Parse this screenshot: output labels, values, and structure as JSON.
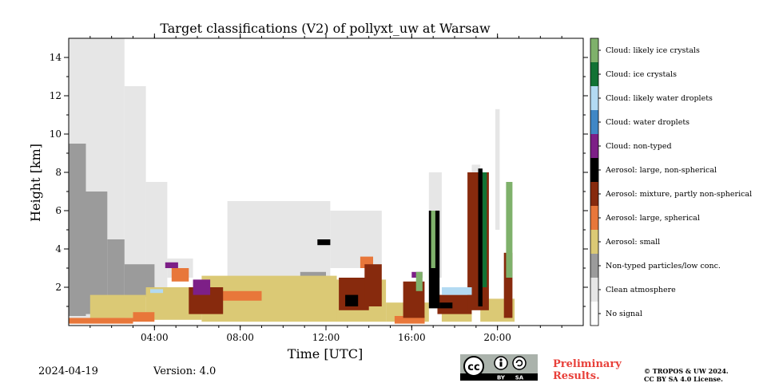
{
  "chart_data": {
    "type": "heatmap",
    "title": "Target classifications (V2) of pollyxt_uw at Warsaw",
    "xlabel": "Time [UTC]",
    "ylabel": "Height [km]",
    "xlim": [
      0,
      24
    ],
    "ylim": [
      0,
      15
    ],
    "x_ticks": [
      {
        "value": 4,
        "label": "04:00"
      },
      {
        "value": 8,
        "label": "08:00"
      },
      {
        "value": 12,
        "label": "12:00"
      },
      {
        "value": 16,
        "label": "16:00"
      },
      {
        "value": 20,
        "label": "20:00"
      }
    ],
    "y_ticks": [
      {
        "value": 2,
        "label": "2"
      },
      {
        "value": 4,
        "label": "4"
      },
      {
        "value": 6,
        "label": "6"
      },
      {
        "value": 8,
        "label": "8"
      },
      {
        "value": 10,
        "label": "10"
      },
      {
        "value": 12,
        "label": "12"
      },
      {
        "value": 14,
        "label": "14"
      }
    ],
    "classes": [
      {
        "label": "No signal",
        "color": "#ffffff"
      },
      {
        "label": "Clean atmosphere",
        "color": "#e6e6e6"
      },
      {
        "label": "Non-typed particles/low conc.",
        "color": "#9b9b9b"
      },
      {
        "label": "Aerosol: small",
        "color": "#dbc975"
      },
      {
        "label": "Aerosol: large, spherical",
        "color": "#e8773a"
      },
      {
        "label": "Aerosol: mixture, partly non-spherical",
        "color": "#872a0d"
      },
      {
        "label": "Aerosol: large, non-spherical",
        "color": "#000000"
      },
      {
        "label": "Cloud: non-typed",
        "color": "#7d1f87"
      },
      {
        "label": "Cloud: water droplets",
        "color": "#4087c6"
      },
      {
        "label": "Cloud: likely water droplets",
        "color": "#b3daf2"
      },
      {
        "label": "Cloud: ice crystals",
        "color": "#127234"
      },
      {
        "label": "Cloud: likely ice crystals",
        "color": "#7fb16b"
      }
    ],
    "regions": [
      {
        "cls": 1,
        "t0": 0.0,
        "t1": 2.6,
        "h0": 0.4,
        "h1": 15.0
      },
      {
        "cls": 1,
        "t0": 2.6,
        "t1": 3.6,
        "h0": 1.5,
        "h1": 12.5
      },
      {
        "cls": 1,
        "t0": 3.6,
        "t1": 4.6,
        "h0": 1.5,
        "h1": 7.5
      },
      {
        "cls": 1,
        "t0": 4.6,
        "t1": 5.8,
        "h0": 2.5,
        "h1": 3.5
      },
      {
        "cls": 2,
        "t0": 0.0,
        "t1": 0.8,
        "h0": 0.5,
        "h1": 9.5
      },
      {
        "cls": 2,
        "t0": 0.8,
        "t1": 1.8,
        "h0": 0.6,
        "h1": 7.0
      },
      {
        "cls": 2,
        "t0": 1.8,
        "t1": 2.6,
        "h0": 0.8,
        "h1": 4.5
      },
      {
        "cls": 2,
        "t0": 2.6,
        "t1": 4.0,
        "h0": 1.5,
        "h1": 3.2
      },
      {
        "cls": 1,
        "t0": 7.4,
        "t1": 12.2,
        "h0": 2.5,
        "h1": 6.5
      },
      {
        "cls": 1,
        "t0": 12.2,
        "t1": 14.6,
        "h0": 3.0,
        "h1": 6.0
      },
      {
        "cls": 1,
        "t0": 16.8,
        "t1": 17.4,
        "h0": 2.5,
        "h1": 8.0
      },
      {
        "cls": 1,
        "t0": 18.8,
        "t1": 19.2,
        "h0": 6.0,
        "h1": 8.4
      },
      {
        "cls": 1,
        "t0": 19.9,
        "t1": 20.1,
        "h0": 5.0,
        "h1": 11.3
      },
      {
        "cls": 2,
        "t0": 18.8,
        "t1": 19.2,
        "h0": 2.5,
        "h1": 7.0
      },
      {
        "cls": 2,
        "t0": 10.8,
        "t1": 12.0,
        "h0": 2.2,
        "h1": 2.8
      },
      {
        "cls": 3,
        "t0": 1.0,
        "t1": 3.6,
        "h0": 0.4,
        "h1": 1.6
      },
      {
        "cls": 3,
        "t0": 3.6,
        "t1": 6.2,
        "h0": 0.3,
        "h1": 2.0
      },
      {
        "cls": 3,
        "t0": 6.2,
        "t1": 12.5,
        "h0": 0.2,
        "h1": 2.6
      },
      {
        "cls": 3,
        "t0": 12.5,
        "t1": 14.8,
        "h0": 0.2,
        "h1": 2.4
      },
      {
        "cls": 3,
        "t0": 14.8,
        "t1": 16.8,
        "h0": 0.2,
        "h1": 1.2
      },
      {
        "cls": 3,
        "t0": 17.4,
        "t1": 18.8,
        "h0": 0.2,
        "h1": 1.0
      },
      {
        "cls": 3,
        "t0": 19.2,
        "t1": 20.8,
        "h0": 0.2,
        "h1": 1.4
      },
      {
        "cls": 4,
        "t0": 0.0,
        "t1": 3.0,
        "h0": 0.1,
        "h1": 0.4
      },
      {
        "cls": 4,
        "t0": 3.0,
        "t1": 4.0,
        "h0": 0.2,
        "h1": 0.7
      },
      {
        "cls": 4,
        "t0": 4.8,
        "t1": 5.6,
        "h0": 2.3,
        "h1": 3.0
      },
      {
        "cls": 4,
        "t0": 7.0,
        "t1": 9.0,
        "h0": 1.3,
        "h1": 1.8
      },
      {
        "cls": 4,
        "t0": 13.6,
        "t1": 14.2,
        "h0": 3.0,
        "h1": 3.6
      },
      {
        "cls": 4,
        "t0": 15.2,
        "t1": 16.6,
        "h0": 0.1,
        "h1": 0.5
      },
      {
        "cls": 5,
        "t0": 5.6,
        "t1": 7.2,
        "h0": 0.6,
        "h1": 2.0
      },
      {
        "cls": 5,
        "t0": 12.6,
        "t1": 14.0,
        "h0": 0.8,
        "h1": 2.5
      },
      {
        "cls": 5,
        "t0": 13.8,
        "t1": 14.6,
        "h0": 1.0,
        "h1": 3.2
      },
      {
        "cls": 5,
        "t0": 15.6,
        "t1": 16.6,
        "h0": 0.4,
        "h1": 2.3
      },
      {
        "cls": 5,
        "t0": 17.2,
        "t1": 18.8,
        "h0": 0.6,
        "h1": 1.6
      },
      {
        "cls": 5,
        "t0": 18.6,
        "t1": 19.6,
        "h0": 0.8,
        "h1": 8.0
      },
      {
        "cls": 5,
        "t0": 20.3,
        "t1": 20.7,
        "h0": 0.4,
        "h1": 3.8
      },
      {
        "cls": 6,
        "t0": 11.6,
        "t1": 12.2,
        "h0": 4.2,
        "h1": 4.5
      },
      {
        "cls": 6,
        "t0": 12.9,
        "t1": 13.5,
        "h0": 1.0,
        "h1": 1.6
      },
      {
        "cls": 6,
        "t0": 16.8,
        "t1": 17.3,
        "h0": 0.9,
        "h1": 6.0
      },
      {
        "cls": 6,
        "t0": 19.1,
        "t1": 19.3,
        "h0": 1.0,
        "h1": 8.2
      },
      {
        "cls": 6,
        "t0": 17.3,
        "t1": 17.9,
        "h0": 0.9,
        "h1": 1.2
      },
      {
        "cls": 7,
        "t0": 5.8,
        "t1": 6.6,
        "h0": 1.6,
        "h1": 2.4
      },
      {
        "cls": 7,
        "t0": 16.0,
        "t1": 16.5,
        "h0": 2.5,
        "h1": 2.8
      },
      {
        "cls": 7,
        "t0": 4.5,
        "t1": 5.1,
        "h0": 3.0,
        "h1": 3.3
      },
      {
        "cls": 8,
        "t0": 17.6,
        "t1": 18.4,
        "h0": 1.7,
        "h1": 1.9
      },
      {
        "cls": 9,
        "t0": 3.8,
        "t1": 4.4,
        "h0": 1.7,
        "h1": 1.9
      },
      {
        "cls": 9,
        "t0": 17.4,
        "t1": 18.8,
        "h0": 1.6,
        "h1": 2.0
      },
      {
        "cls": 10,
        "t0": 19.3,
        "t1": 19.5,
        "h0": 2.0,
        "h1": 8.0
      },
      {
        "cls": 11,
        "t0": 16.2,
        "t1": 16.5,
        "h0": 1.8,
        "h1": 2.8
      },
      {
        "cls": 11,
        "t0": 20.4,
        "t1": 20.7,
        "h0": 2.5,
        "h1": 7.5
      },
      {
        "cls": 11,
        "t0": 16.9,
        "t1": 17.1,
        "h0": 3.0,
        "h1": 6.0
      }
    ],
    "grid": false,
    "legend_placement": "right colorbar"
  },
  "footer": {
    "date": "2024-04-19",
    "version": "Version: 4.0",
    "preliminary": "Preliminary Results.",
    "license_line1": "© TROPOS & UW 2024.",
    "license_line2": "CC BY SA 4.0 License.",
    "cc_text": "cc",
    "cc_by": "BY",
    "cc_sa": "SA"
  }
}
